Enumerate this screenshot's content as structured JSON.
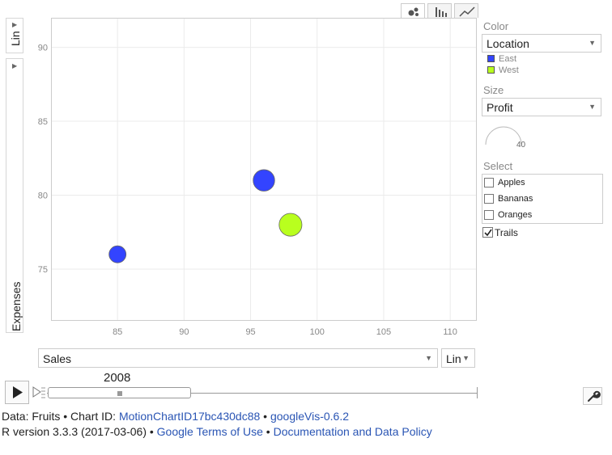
{
  "chart_data": {
    "type": "scatter",
    "title": "",
    "xlabel": "Sales",
    "ylabel": "Expenses",
    "xlim": [
      80,
      112
    ],
    "ylim": [
      71.5,
      92
    ],
    "x_ticks": [
      85,
      90,
      95,
      100,
      105,
      110
    ],
    "y_ticks": [
      75,
      80,
      85,
      90
    ],
    "grid": true,
    "x_scale": "Lin",
    "y_scale": "Lin",
    "series": [
      {
        "name": "East",
        "color": "#3344ff",
        "points": [
          {
            "x": 85,
            "y": 76,
            "size": 1
          },
          {
            "x": 96,
            "y": 81,
            "size": 1.6
          }
        ]
      },
      {
        "name": "West",
        "color": "#b9ff1e",
        "points": [
          {
            "x": 98,
            "y": 78,
            "size": 1.8
          }
        ]
      }
    ]
  },
  "controls": {
    "y_scale_label": "Lin",
    "y_variable": "Expenses",
    "x_variable": "Sales",
    "x_scale_label": "Lin",
    "color_label": "Color",
    "color_value": "Location",
    "legend": [
      {
        "name": "East",
        "color": "#3344ff"
      },
      {
        "name": "West",
        "color": "#b9ff1e"
      }
    ],
    "size_label": "Size",
    "size_value": "Profit",
    "size_scale_value": "40",
    "select_label": "Select",
    "select_items": [
      "Apples",
      "Bananas",
      "Oranges"
    ],
    "trails_label": "Trails",
    "year": "2008"
  },
  "footer": {
    "line1_prefix": "Data: Fruits • Chart ID: ",
    "chart_id": "MotionChartID17bc430dc88",
    "sep1": " • ",
    "version": "googleVis-0.6.2",
    "line2_prefix": "R version 3.3.3 (2017-03-06) • ",
    "terms": "Google Terms of Use",
    "sep2": " • ",
    "policy": "Documentation and Data Policy"
  }
}
